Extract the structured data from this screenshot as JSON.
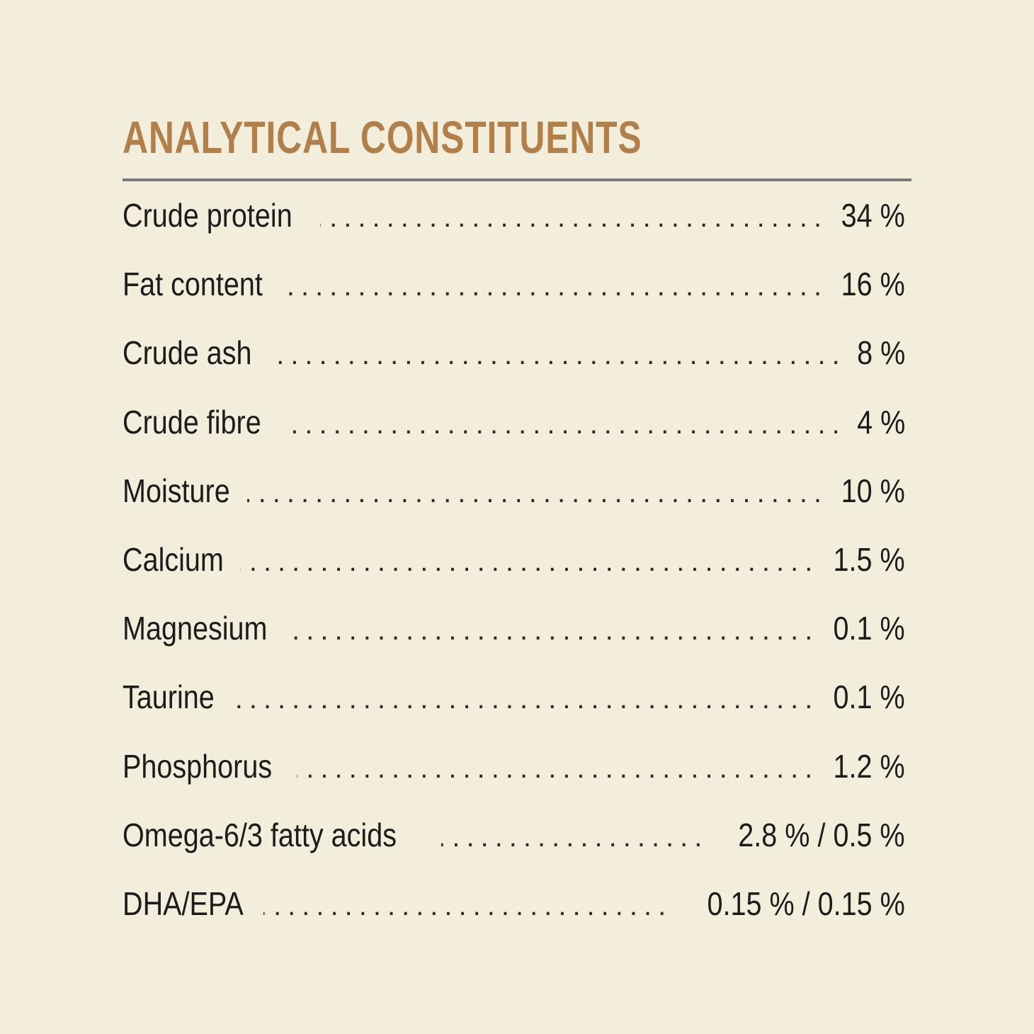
{
  "heading": "ANALYTICAL CONSTITUENTS",
  "dot_leader": "........................................................................................",
  "rows": [
    {
      "label": "Crude protein",
      "value": "34 %"
    },
    {
      "label": "Fat content",
      "value": "16 %"
    },
    {
      "label": "Crude ash",
      "value": "8 %"
    },
    {
      "label": "Crude fibre",
      "value": "4 %"
    },
    {
      "label": "Moisture",
      "value": "10 %"
    },
    {
      "label": "Calcium",
      "value": "1.5 %"
    },
    {
      "label": "Magnesium",
      "value": "0.1 %"
    },
    {
      "label": "Taurine",
      "value": "0.1 %"
    },
    {
      "label": "Phosphorus",
      "value": "1.2 %"
    },
    {
      "label": "Omega-6/3 fatty acids",
      "value": "2.8 % / 0.5 %"
    },
    {
      "label": "DHA/EPA",
      "value": "0.15 % / 0.15 %"
    }
  ],
  "colors": {
    "background": "#f2eedb",
    "heading": "#b07f4a",
    "rule": "#7a7a7a",
    "text": "#1c1c1c"
  }
}
